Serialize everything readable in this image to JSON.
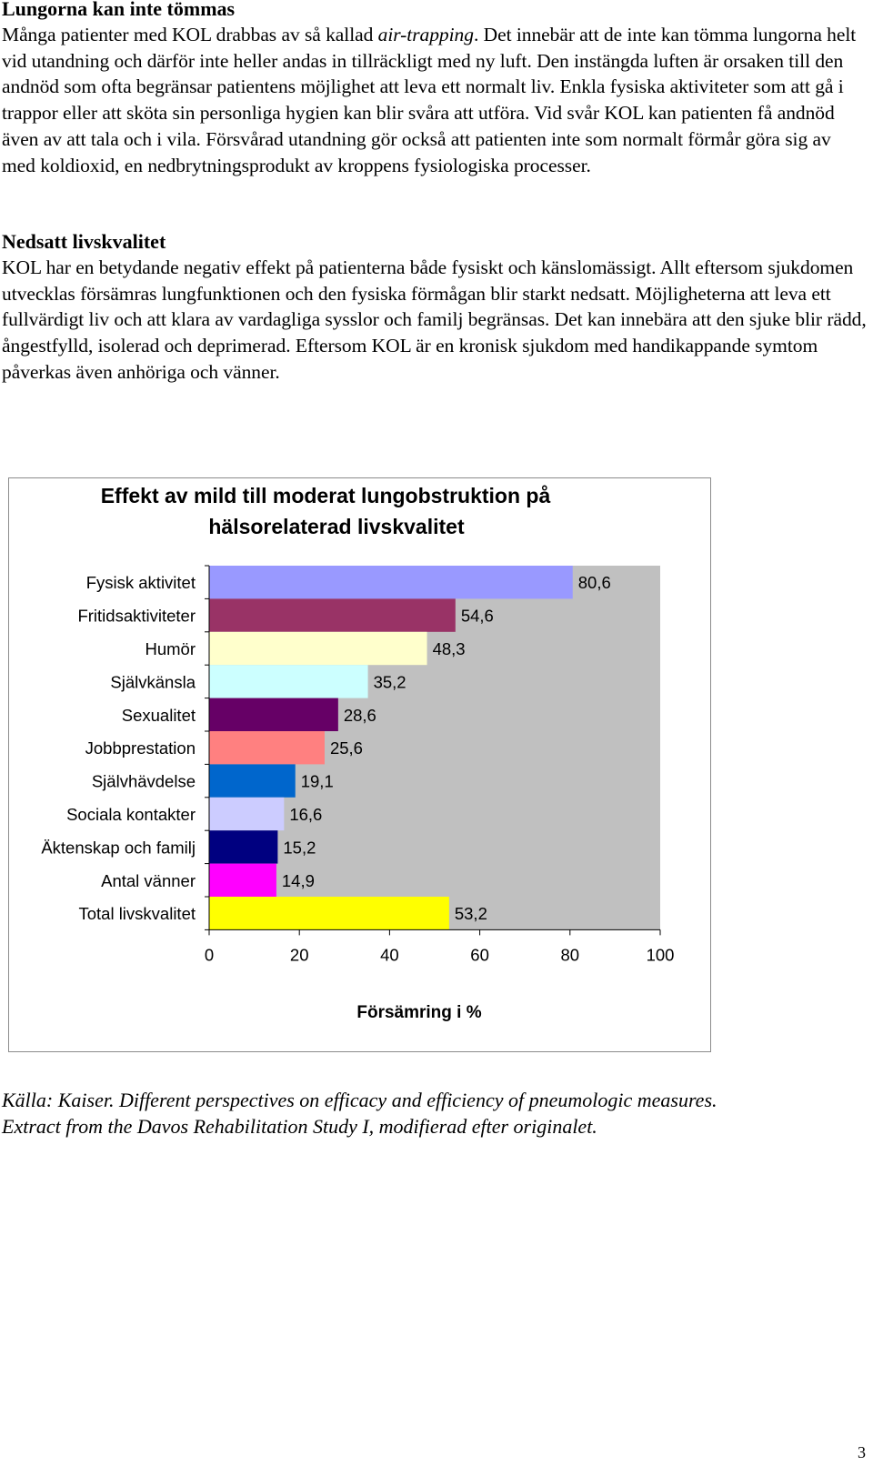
{
  "section1": {
    "heading": "Lungorna kan inte tömmas",
    "text_before_italic": "Många patienter med KOL drabbas av så kallad ",
    "italic": "air-trapping",
    "text_after_italic": ". Det innebär att de inte kan tömma lungorna helt vid utandning och därför inte heller andas in tillräckligt med ny luft. Den instängda luften är orsaken till den andnöd som ofta begränsar patientens möjlighet att leva ett normalt liv. Enkla fysiska aktiviteter som att gå i trappor eller att sköta sin personliga hygien kan blir svåra att utföra. Vid svår KOL kan patienten få andnöd även av att tala och i vila. Försvårad utandning gör också att patienten inte som normalt förmår göra sig av med koldioxid, en nedbrytningsprodukt av kroppens fysiologiska processer."
  },
  "section2": {
    "heading": "Nedsatt livskvalitet",
    "text": "KOL har en betydande negativ effekt på patienterna både fysiskt och känslomässigt. Allt eftersom sjukdomen utvecklas försämras lungfunktionen och den fysiska förmågan blir starkt nedsatt. Möjligheterna att leva ett fullvärdigt liv och att klara av vardagliga sysslor och familj begränsas. Det kan innebära att den sjuke blir rädd, ångestfylld, isolerad och deprimerad. Eftersom KOL är en kronisk sjukdom med handikappande symtom påverkas även anhöriga och vänner."
  },
  "chart_data": {
    "type": "bar",
    "orientation": "horizontal",
    "title_line1": "Effekt av mild till moderat lungobstruktion på",
    "title_line2": "hälsorelaterad livskvalitet",
    "xlabel": "Försämring i %",
    "ylabel": "",
    "xlim": [
      0,
      100
    ],
    "xticks": [
      0,
      20,
      40,
      60,
      80,
      100
    ],
    "grid": false,
    "plot_background": "#c0c0c0",
    "categories": [
      "Fysisk aktivitet",
      "Fritidsaktiviteter",
      "Humör",
      "Självkänsla",
      "Sexualitet",
      "Jobbprestation",
      "Självhävdelse",
      "Sociala kontakter",
      "Äktenskap och familj",
      "Antal vänner",
      "Total livskvalitet"
    ],
    "values": [
      80.6,
      54.6,
      48.3,
      35.2,
      28.6,
      25.6,
      19.1,
      16.6,
      15.2,
      14.9,
      53.2
    ],
    "value_labels": [
      "80,6",
      "54,6",
      "48,3",
      "35,2",
      "28,6",
      "25,6",
      "19,1",
      "16,6",
      "15,2",
      "14,9",
      "53,2"
    ],
    "colors": [
      "#9999ff",
      "#993366",
      "#ffffcc",
      "#ccffff",
      "#660066",
      "#ff8080",
      "#0066cc",
      "#ccccff",
      "#000080",
      "#ff00ff",
      "#ffff00"
    ]
  },
  "source": {
    "line1": "Källa: Kaiser. Different perspectives on efficacy and efficiency of pneumologic measures.",
    "line2": "Extract from the Davos Rehabilitation Study I, modifierad efter originalet."
  },
  "page_number": "3"
}
